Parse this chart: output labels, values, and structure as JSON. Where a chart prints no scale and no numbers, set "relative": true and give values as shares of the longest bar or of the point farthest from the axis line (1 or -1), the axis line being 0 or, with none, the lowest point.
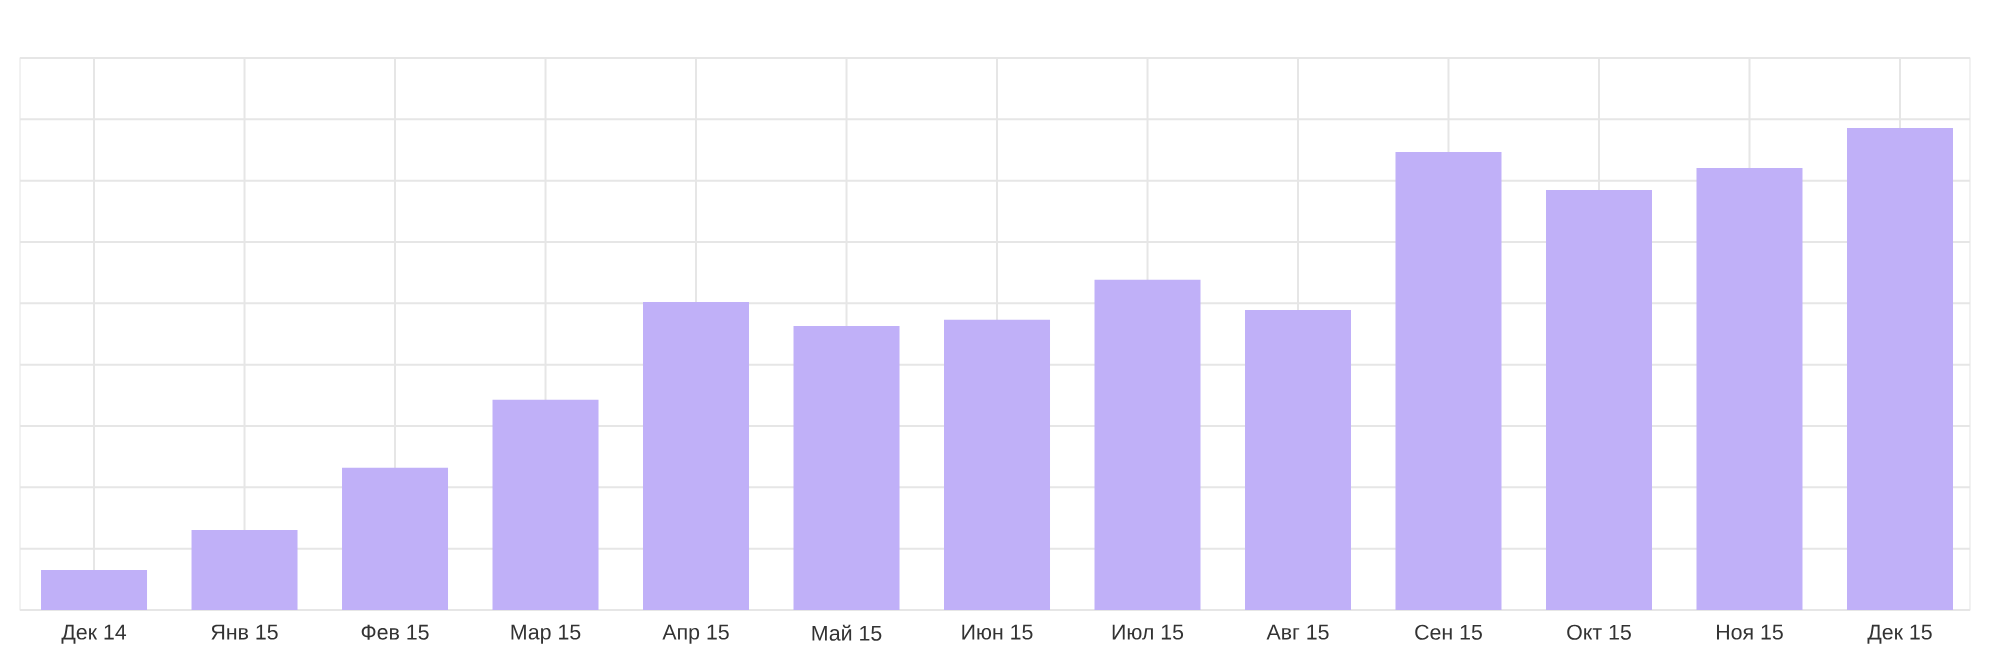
{
  "chart_data": {
    "type": "bar",
    "relative": true,
    "grid": true,
    "color": "#c0b0f8",
    "categories": [
      "Дек 14",
      "Янв 15",
      "Фев 15",
      "Мар 15",
      "Апр 15",
      "Май 15",
      "Июн 15",
      "Июл 15",
      "Авг 15",
      "Сен 15",
      "Окт 15",
      "Ноя 15",
      "Дек 15"
    ],
    "values": [
      0.083,
      0.166,
      0.295,
      0.436,
      0.639,
      0.589,
      0.602,
      0.685,
      0.622,
      0.95,
      0.871,
      0.917,
      1
    ]
  }
}
